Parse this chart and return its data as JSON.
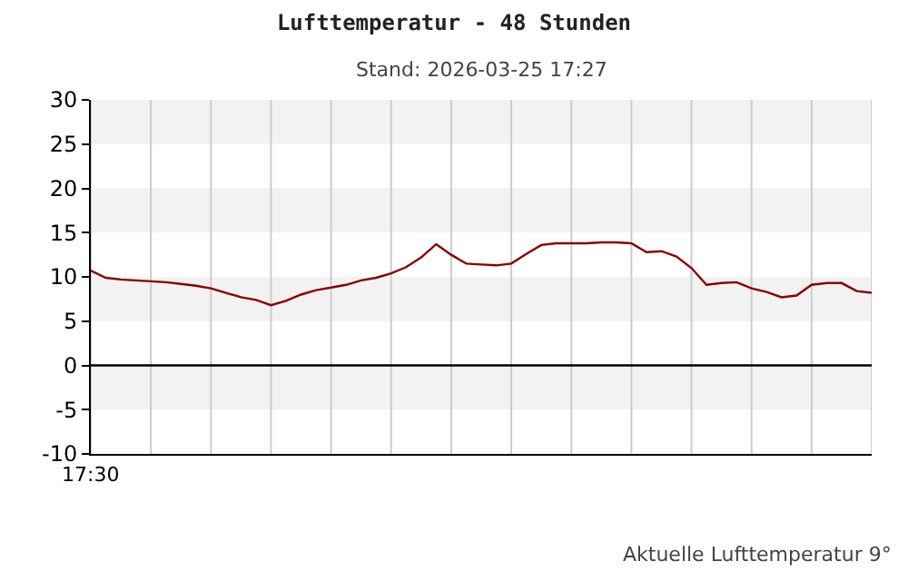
{
  "chart_data": {
    "type": "line",
    "title": "Lufttemperatur - 48 Stunden",
    "subtitle": "Stand: 2026-03-25 17:27",
    "categories": [
      null,
      null,
      null,
      null,
      null,
      null,
      null,
      null,
      null,
      null,
      null,
      null,
      null,
      null,
      null,
      null,
      null,
      null,
      null,
      null,
      null,
      null,
      null,
      null,
      null,
      null,
      null,
      null,
      null,
      null,
      null,
      null,
      null,
      null,
      null,
      null,
      null,
      null,
      null,
      null,
      null,
      null,
      null,
      null,
      null,
      null,
      null,
      null,
      null,
      null,
      null,
      null,
      null
    ],
    "series": [
      {
        "color": "#8b0000",
        "values": [
          10.7,
          9.9,
          9.7,
          9.6,
          9.5,
          9.4,
          9.2,
          9.0,
          8.7,
          8.2,
          7.7,
          7.4,
          6.8,
          7.3,
          8.0,
          8.5,
          8.8,
          9.1,
          9.6,
          9.9,
          10.4,
          11.1,
          12.2,
          13.7,
          12.5,
          11.5,
          11.4,
          11.3,
          11.5,
          12.6,
          13.6,
          13.8,
          13.8,
          13.8,
          13.9,
          13.9,
          13.8,
          12.8,
          12.9,
          12.3,
          11.0,
          9.1,
          9.3,
          9.4,
          8.7,
          8.3,
          7.7,
          7.9,
          9.1,
          9.3,
          9.3,
          8.4,
          8.2
        ]
      }
    ],
    "ylim": [
      -10,
      30
    ],
    "yticks": [
      -10,
      -5,
      0,
      5,
      10,
      15,
      20,
      25,
      30
    ],
    "grid": "x",
    "marker": "none",
    "line_style": "solid",
    "bands": [
      {
        "axis": "y",
        "from": 25,
        "to": 30,
        "color": "#f2f2f2"
      },
      {
        "axis": "y",
        "from": 15,
        "to": 20,
        "color": "#f2f2f2"
      },
      {
        "axis": "y",
        "from": 5,
        "to": 10,
        "color": "#f2f2f2"
      },
      {
        "axis": "y",
        "from": -5,
        "to": 0,
        "color": "#f2f2f2"
      }
    ],
    "ref_lines": [
      {
        "axis": "y",
        "value": 0,
        "color": "#000000"
      }
    ],
    "annotations": [
      "17:30",
      "Aktuelle Lufttemperatur 9°"
    ]
  }
}
